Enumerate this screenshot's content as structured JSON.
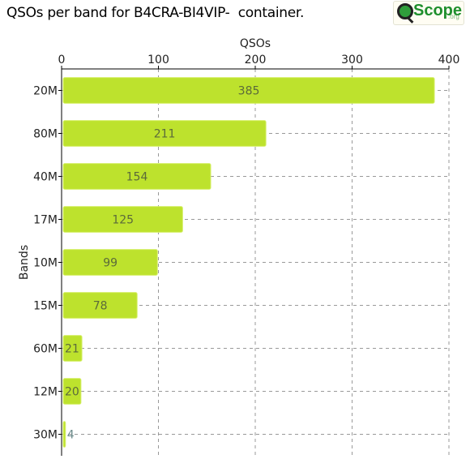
{
  "header": {
    "title": "QSOs per band for B4CRA-BI4VIP-  container.",
    "logo_text": "Scope",
    "logo_suffix": ".org"
  },
  "chart_data": {
    "type": "bar",
    "orientation": "horizontal",
    "xlabel": "QSOs",
    "ylabel": "Bands",
    "xlim": [
      0,
      400
    ],
    "xticks": [
      0,
      100,
      200,
      300,
      400
    ],
    "grid": true,
    "categories": [
      "20M",
      "80M",
      "40M",
      "17M",
      "10M",
      "15M",
      "60M",
      "12M",
      "30M"
    ],
    "values": [
      385,
      211,
      154,
      125,
      99,
      78,
      21,
      20,
      4
    ],
    "bar_color": "#bde22d",
    "label_color_inside": "#5b6a3a",
    "label_color_outside": "#6b8a8a"
  }
}
